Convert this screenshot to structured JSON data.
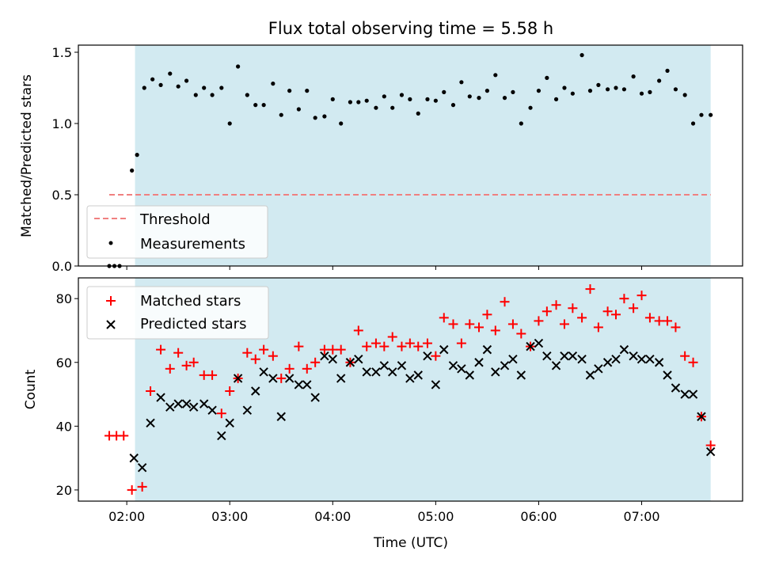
{
  "chart_data": {
    "type": "scatter",
    "title": "Flux total observing time = 5.58 h",
    "xlabel": "Time (UTC)",
    "xticks": [
      "02:00",
      "03:00",
      "04:00",
      "05:00",
      "06:00",
      "07:00"
    ],
    "xlim_hours": [
      1.53,
      7.98
    ],
    "shaded_span_hours": [
      2.08,
      7.67
    ],
    "colors": {
      "shade": "#add8e6",
      "threshold": "#f08080",
      "matched": "#ff0000",
      "predicted": "#000000",
      "measurements": "#000000"
    },
    "panels": [
      {
        "ylabel": "Matched/Predicted stars",
        "ylim": [
          0.0,
          1.55
        ],
        "yticks": [
          "0.0",
          "0.5",
          "1.0",
          "1.5"
        ],
        "legend": {
          "placement": "lower-left",
          "entries": [
            "Threshold",
            "Measurements"
          ]
        },
        "threshold": {
          "name": "Threshold",
          "value": 0.5,
          "x_start": 1.83,
          "x_end": 7.67
        },
        "series": [
          {
            "name": "Measurements",
            "x": [
              1.83,
              1.88,
              1.93,
              2.05,
              2.1,
              2.17,
              2.25,
              2.33,
              2.42,
              2.5,
              2.58,
              2.67,
              2.75,
              2.83,
              2.92,
              3.0,
              3.08,
              3.17,
              3.25,
              3.33,
              3.42,
              3.5,
              3.58,
              3.67,
              3.75,
              3.83,
              3.92,
              4.0,
              4.08,
              4.17,
              4.25,
              4.33,
              4.42,
              4.5,
              4.58,
              4.67,
              4.75,
              4.83,
              4.92,
              5.0,
              5.08,
              5.17,
              5.25,
              5.33,
              5.42,
              5.5,
              5.58,
              5.67,
              5.75,
              5.83,
              5.92,
              6.0,
              6.08,
              6.17,
              6.25,
              6.33,
              6.42,
              6.5,
              6.58,
              6.67,
              6.75,
              6.83,
              6.92,
              7.0,
              7.08,
              7.17,
              7.25,
              7.33,
              7.42,
              7.5,
              7.58,
              7.67
            ],
            "y": [
              0.0,
              0.0,
              0.0,
              0.67,
              0.78,
              1.25,
              1.31,
              1.27,
              1.35,
              1.26,
              1.3,
              1.2,
              1.25,
              1.2,
              1.25,
              1.0,
              1.4,
              1.2,
              1.13,
              1.13,
              1.28,
              1.06,
              1.23,
              1.1,
              1.23,
              1.04,
              1.05,
              1.17,
              1.0,
              1.15,
              1.15,
              1.16,
              1.11,
              1.19,
              1.11,
              1.2,
              1.17,
              1.07,
              1.17,
              1.16,
              1.22,
              1.13,
              1.29,
              1.19,
              1.18,
              1.23,
              1.34,
              1.18,
              1.22,
              1.0,
              1.11,
              1.23,
              1.32,
              1.17,
              1.25,
              1.21,
              1.48,
              1.23,
              1.27,
              1.24,
              1.25,
              1.24,
              1.33,
              1.21,
              1.22,
              1.3,
              1.37,
              1.24,
              1.2,
              1.0,
              1.06,
              1.06
            ]
          }
        ]
      },
      {
        "ylabel": "Count",
        "ylim": [
          16.5,
          86.5
        ],
        "yticks": [
          "20",
          "40",
          "60",
          "80"
        ],
        "legend": {
          "placement": "upper-left",
          "entries": [
            "Matched stars",
            "Predicted stars"
          ]
        },
        "series": [
          {
            "name": "Matched stars",
            "marker": "plus",
            "x": [
              1.83,
              1.9,
              1.97,
              2.05,
              2.15,
              2.23,
              2.33,
              2.42,
              2.5,
              2.58,
              2.65,
              2.75,
              2.83,
              2.92,
              3.0,
              3.08,
              3.17,
              3.25,
              3.33,
              3.42,
              3.5,
              3.58,
              3.67,
              3.75,
              3.83,
              3.92,
              4.0,
              4.08,
              4.17,
              4.25,
              4.33,
              4.42,
              4.5,
              4.58,
              4.67,
              4.75,
              4.83,
              4.92,
              5.0,
              5.08,
              5.17,
              5.25,
              5.33,
              5.42,
              5.5,
              5.58,
              5.67,
              5.75,
              5.83,
              5.92,
              6.0,
              6.08,
              6.17,
              6.25,
              6.33,
              6.42,
              6.5,
              6.58,
              6.67,
              6.75,
              6.83,
              6.92,
              7.0,
              7.08,
              7.17,
              7.25,
              7.33,
              7.42,
              7.5,
              7.58,
              7.67
            ],
            "y": [
              37,
              37,
              37,
              20,
              21,
              51,
              64,
              58,
              63,
              59,
              60,
              56,
              56,
              44,
              51,
              55,
              63,
              61,
              64,
              62,
              55,
              58,
              65,
              58,
              60,
              64,
              64,
              64,
              60,
              70,
              65,
              66,
              65,
              68,
              65,
              66,
              65,
              66,
              62,
              74,
              72,
              66,
              72,
              71,
              75,
              70,
              79,
              72,
              69,
              65,
              73,
              76,
              78,
              72,
              77,
              74,
              83,
              71,
              76,
              75,
              80,
              77,
              81,
              74,
              73,
              73,
              71,
              62,
              60,
              43,
              34
            ]
          },
          {
            "name": "Predicted stars",
            "marker": "x",
            "x": [
              2.07,
              2.15,
              2.23,
              2.33,
              2.42,
              2.5,
              2.58,
              2.65,
              2.75,
              2.83,
              2.92,
              3.0,
              3.08,
              3.17,
              3.25,
              3.33,
              3.42,
              3.5,
              3.58,
              3.67,
              3.75,
              3.83,
              3.92,
              4.0,
              4.08,
              4.17,
              4.25,
              4.33,
              4.42,
              4.5,
              4.58,
              4.67,
              4.75,
              4.83,
              4.92,
              5.0,
              5.08,
              5.17,
              5.25,
              5.33,
              5.42,
              5.5,
              5.58,
              5.67,
              5.75,
              5.83,
              5.92,
              6.0,
              6.08,
              6.17,
              6.25,
              6.33,
              6.42,
              6.5,
              6.58,
              6.67,
              6.75,
              6.83,
              6.92,
              7.0,
              7.08,
              7.17,
              7.25,
              7.33,
              7.42,
              7.5,
              7.58,
              7.67
            ],
            "y": [
              30,
              27,
              41,
              49,
              46,
              47,
              47,
              46,
              47,
              45,
              37,
              41,
              55,
              45,
              51,
              57,
              55,
              43,
              55,
              53,
              53,
              49,
              62,
              61,
              55,
              60,
              61,
              57,
              57,
              59,
              57,
              59,
              55,
              56,
              62,
              53,
              64,
              59,
              58,
              56,
              60,
              64,
              57,
              59,
              61,
              56,
              65,
              66,
              62,
              59,
              62,
              62,
              61,
              56,
              58,
              60,
              61,
              64,
              62,
              61,
              61,
              60,
              56,
              52,
              50,
              50,
              43,
              32
            ]
          }
        ]
      }
    ]
  }
}
